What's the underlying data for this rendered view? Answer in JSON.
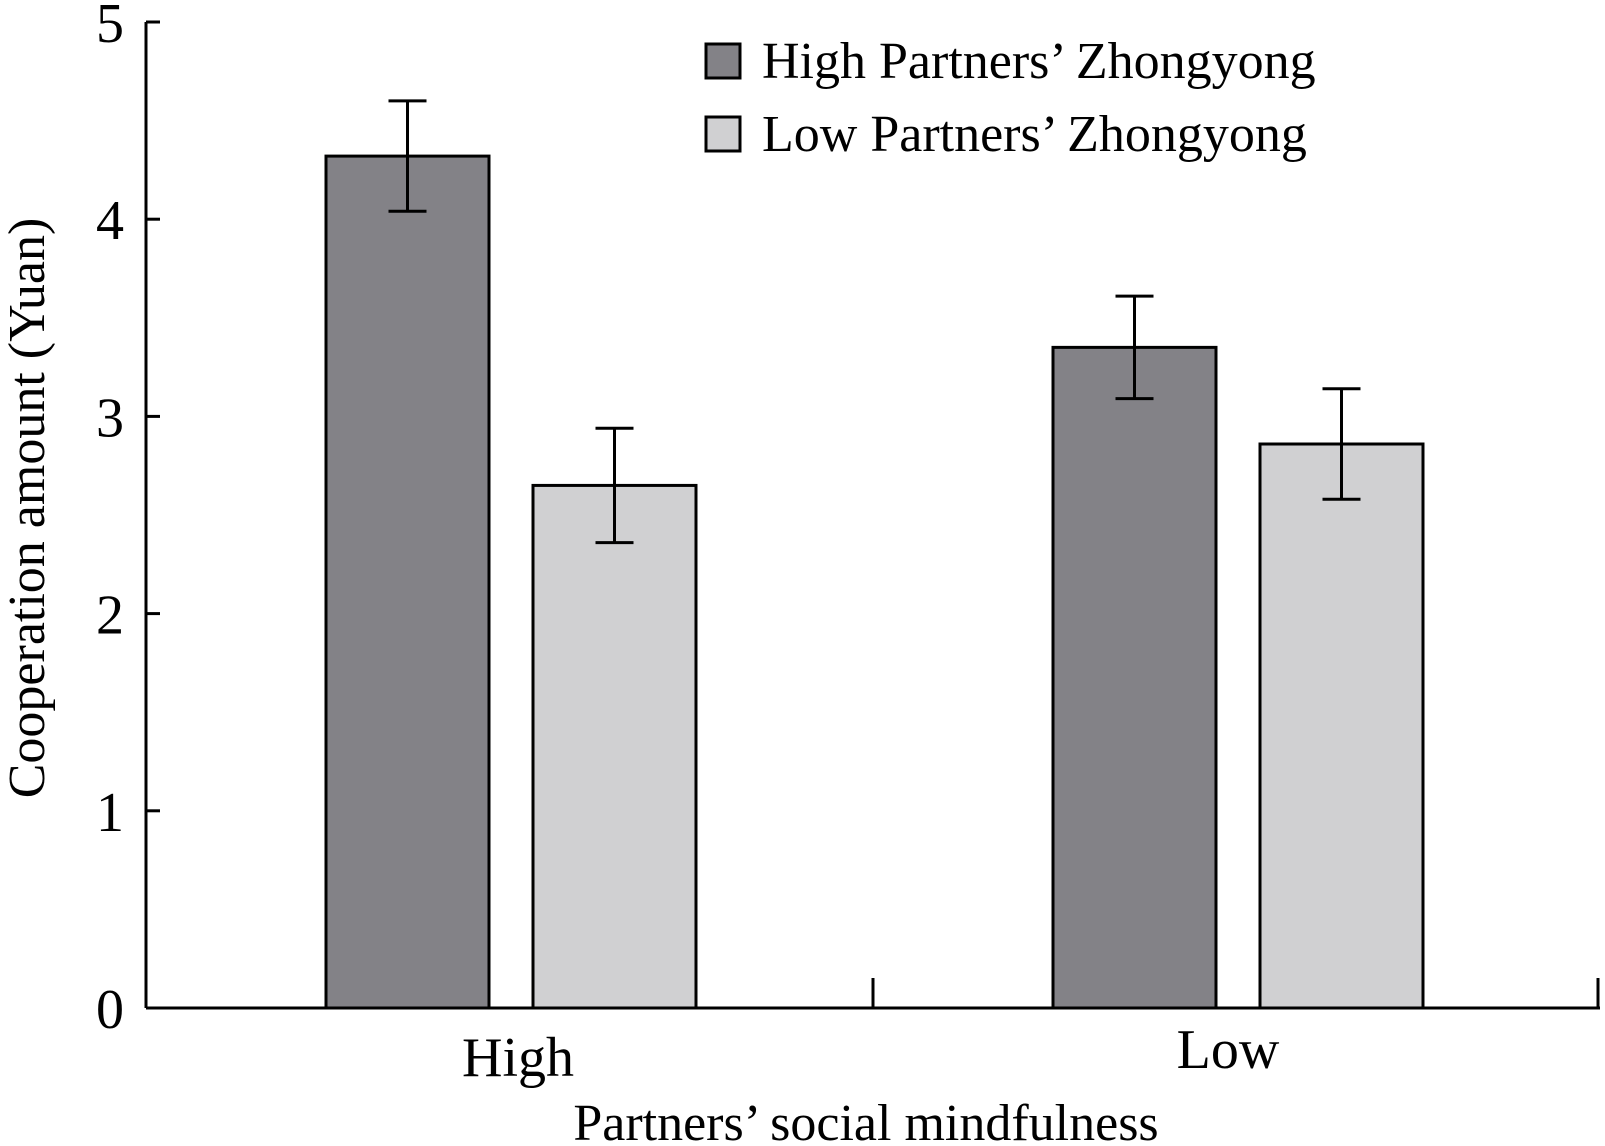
{
  "chart_data": {
    "type": "bar",
    "title": "",
    "xlabel": "Partners’ social mindfulness",
    "ylabel": "Cooperation amount (Yuan)",
    "categories": [
      "High",
      "Low"
    ],
    "ylim": [
      0,
      5
    ],
    "yticks": [
      "0",
      "1",
      "2",
      "3",
      "4",
      "5"
    ],
    "grid": false,
    "legend_position": "top-right",
    "series": [
      {
        "name": "High Partners’ Zhongyong",
        "color": "#838287",
        "values": [
          4.32,
          3.35
        ],
        "errors": [
          0.28,
          0.26
        ]
      },
      {
        "name": "Low Partners’ Zhongyong",
        "color": "#d0d0d2",
        "values": [
          2.65,
          2.86
        ],
        "errors": [
          0.29,
          0.28
        ]
      }
    ]
  }
}
